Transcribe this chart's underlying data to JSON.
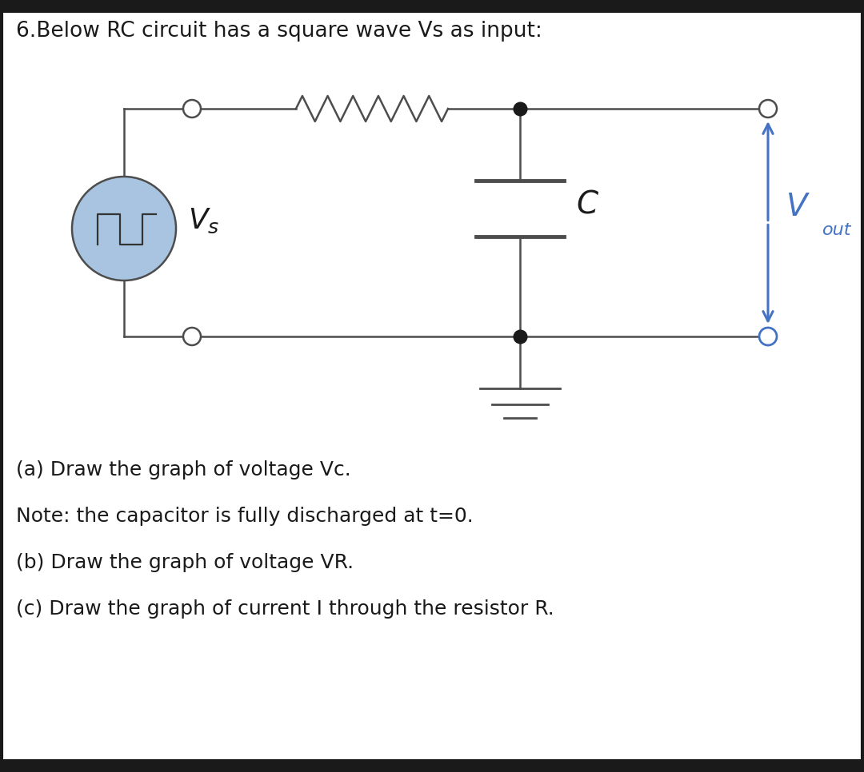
{
  "title": "6.Below RC circuit has a square wave Vs as input:",
  "title_fontsize": 19,
  "background_color": "#ffffff",
  "circuit_color": "#4d4d4d",
  "blue_color": "#4472c4",
  "text_color": "#1a1a1a",
  "questions": [
    "(a) Draw the graph of voltage Vc.",
    "Note: the capacitor is fully discharged at t=0.",
    "(b) Draw the graph of voltage VR.",
    "(c) Draw the graph of current I through the resistor R."
  ],
  "question_fontsize": 18,
  "border_color": "#1a1a1a",
  "src_blue": "#a8c4e0"
}
